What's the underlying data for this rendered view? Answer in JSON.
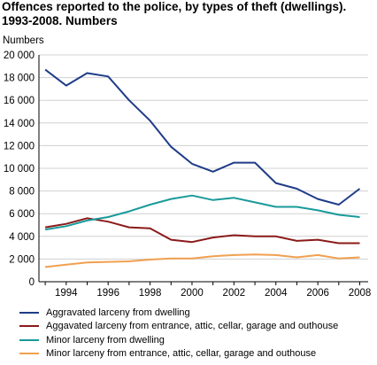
{
  "chart_data": {
    "type": "line",
    "title": "Offences reported to the police, by types of theft (dwellings). 1993-2008. Numbers",
    "ylabel": "Numbers",
    "xlabel": "",
    "x": [
      1993,
      1994,
      1995,
      1996,
      1997,
      1998,
      1999,
      2000,
      2001,
      2002,
      2003,
      2004,
      2005,
      2006,
      2007,
      2008
    ],
    "x_tick_labels": [
      "1994",
      "1996",
      "1998",
      "2000",
      "2002",
      "2004",
      "2006",
      "2008"
    ],
    "y_tick_labels": [
      "0",
      "2 000",
      "4 000",
      "6 000",
      "8 000",
      "10 000",
      "12 000",
      "14 000",
      "16 000",
      "18 000",
      "20 000"
    ],
    "ylim": [
      0,
      20000
    ],
    "grid": true,
    "legend_position": "bottom",
    "series": [
      {
        "name": "Aggravated larceny from dwelling",
        "color": "#1f3c88",
        "values": [
          18700,
          17300,
          18400,
          18100,
          16000,
          14200,
          11900,
          10400,
          9700,
          10500,
          10500,
          8700,
          8200,
          7300,
          6800,
          8200
        ]
      },
      {
        "name": "Aggavated larceny from entrance, attic, cellar, garage and outhouse",
        "color": "#8b1a1a",
        "values": [
          4800,
          5100,
          5600,
          5300,
          4800,
          4700,
          3700,
          3500,
          3900,
          4100,
          4000,
          4000,
          3600,
          3700,
          3400,
          3400
        ]
      },
      {
        "name": "Minor larceny from dwelling",
        "color": "#1a9a9a",
        "values": [
          4600,
          4900,
          5400,
          5700,
          6200,
          6800,
          7300,
          7600,
          7200,
          7400,
          7000,
          6600,
          6600,
          6300,
          5900,
          5700
        ]
      },
      {
        "name": "Minor larceny from entrance, attic, cellar, garage and outhouse",
        "color": "#f0a050",
        "values": [
          1300,
          1500,
          1700,
          1750,
          1800,
          1950,
          2050,
          2050,
          2250,
          2350,
          2400,
          2350,
          2150,
          2350,
          2050,
          2150
        ]
      }
    ]
  }
}
